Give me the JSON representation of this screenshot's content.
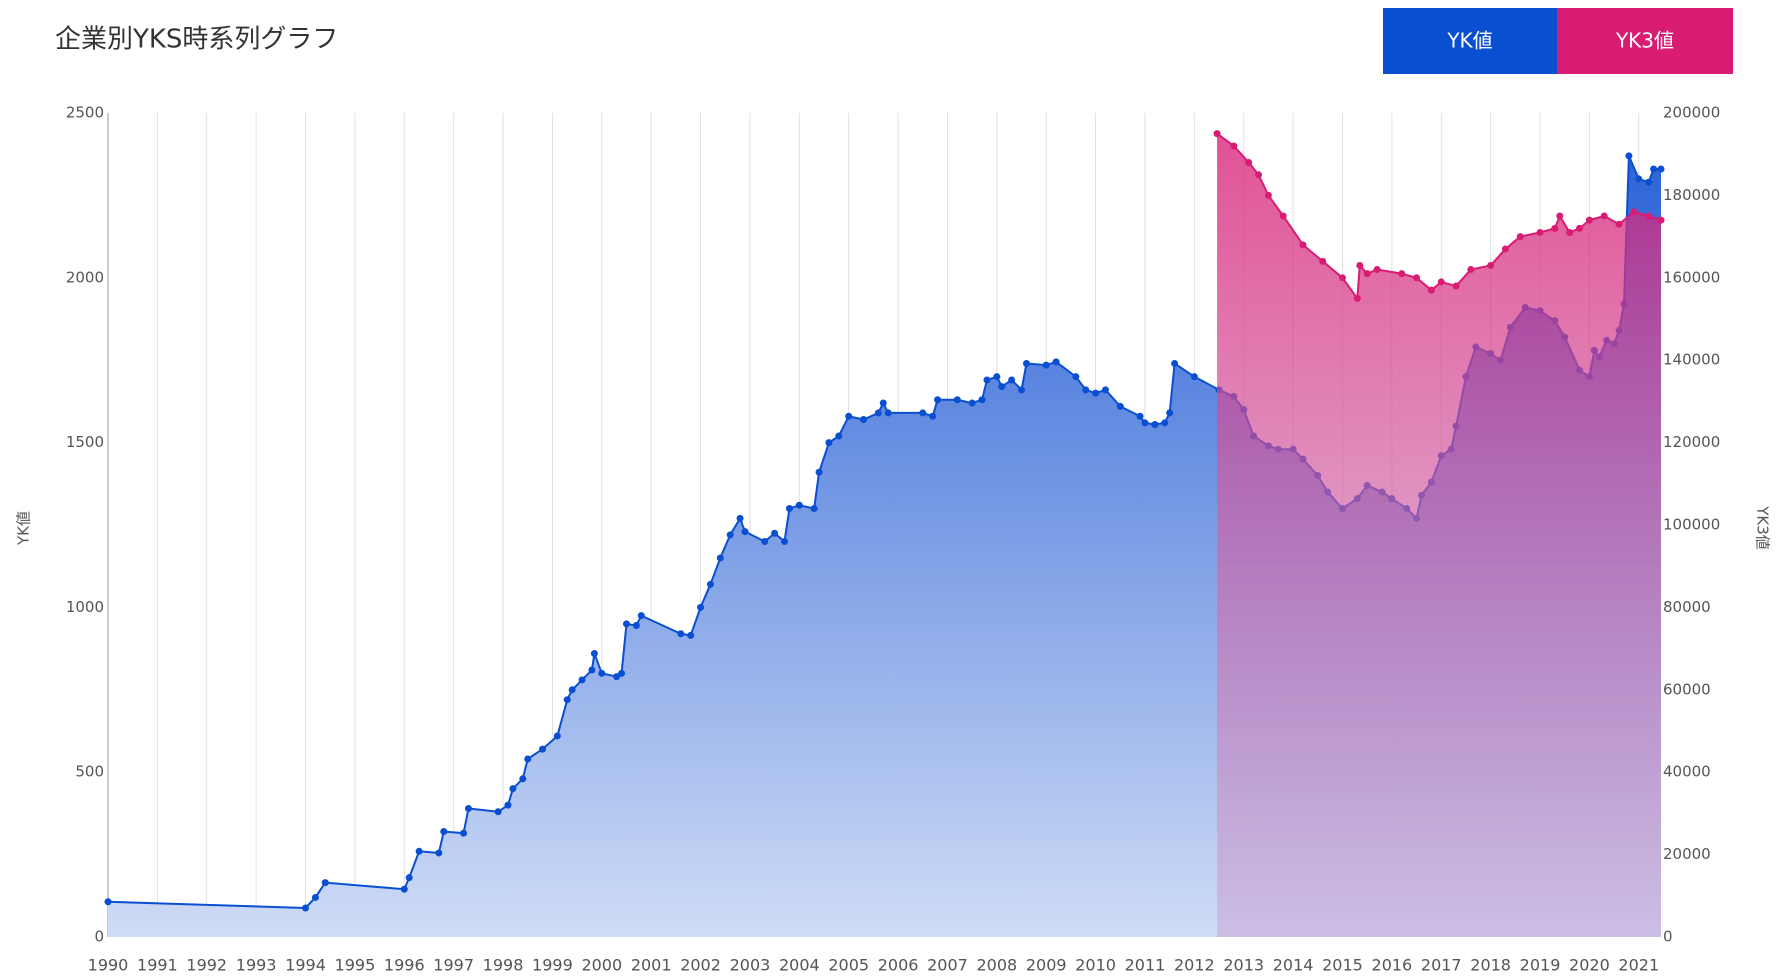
{
  "chart_data": {
    "type": "area",
    "title": "企業別YKS時系列グラフ",
    "y_label": "YK値",
    "y2_label": "YK3値",
    "xlim": [
      1990,
      2021.45
    ],
    "xticks": [
      1990,
      1991,
      1992,
      1993,
      1994,
      1995,
      1996,
      1997,
      1998,
      1999,
      2000,
      2001,
      2002,
      2003,
      2004,
      2005,
      2006,
      2007,
      2008,
      2009,
      2010,
      2011,
      2012,
      2013,
      2014,
      2015,
      2016,
      2017,
      2018,
      2019,
      2020,
      2021
    ],
    "ylim": [
      0,
      2500
    ],
    "yticks": [
      0,
      500,
      1000,
      1500,
      2000,
      2500
    ],
    "y2lim": [
      0,
      200000
    ],
    "y2ticks": [
      0,
      20000,
      40000,
      60000,
      80000,
      100000,
      120000,
      140000,
      160000,
      180000,
      200000
    ],
    "grid": true,
    "legend": "top-right",
    "series": [
      {
        "name": "YK値",
        "color": "#0a4fd1",
        "x": [
          1990,
          1994.0,
          1994.2,
          1994.4,
          1996.0,
          1996.1,
          1996.3,
          1996.7,
          1996.8,
          1997.2,
          1997.3,
          1997.9,
          1998.1,
          1998.2,
          1998.4,
          1998.5,
          1998.8,
          1999.1,
          1999.3,
          1999.4,
          1999.6,
          1999.8,
          1999.85,
          2000.0,
          2000.3,
          2000.4,
          2000.5,
          2000.7,
          2000.8,
          2001.6,
          2001.8,
          2002.0,
          2002.2,
          2002.4,
          2002.6,
          2002.8,
          2002.9,
          2003.3,
          2003.5,
          2003.7,
          2003.8,
          2004.0,
          2004.3,
          2004.4,
          2004.6,
          2004.8,
          2005.0,
          2005.3,
          2005.6,
          2005.7,
          2005.8,
          2006.5,
          2006.7,
          2006.8,
          2007.2,
          2007.5,
          2007.7,
          2007.8,
          2008.0,
          2008.1,
          2008.3,
          2008.5,
          2008.6,
          2009.0,
          2009.2,
          2009.6,
          2009.8,
          2010.0,
          2010.2,
          2010.5,
          2010.9,
          2011.0,
          2011.2,
          2011.4,
          2011.5,
          2011.6,
          2012.0,
          2012.5,
          2012.8,
          2013.0,
          2013.2,
          2013.5,
          2013.7,
          2014.0,
          2014.2,
          2014.5,
          2014.7,
          2015.0,
          2015.3,
          2015.5,
          2015.8,
          2016.0,
          2016.3,
          2016.5,
          2016.6,
          2016.8,
          2017.0,
          2017.2,
          2017.3,
          2017.5,
          2017.7,
          2018.0,
          2018.2,
          2018.4,
          2018.7,
          2019.0,
          2019.3,
          2019.5,
          2019.8,
          2020.0,
          2020.1,
          2020.2,
          2020.35,
          2020.5,
          2020.6,
          2020.7,
          2020.8,
          2021.0,
          2021.2,
          2021.3,
          2021.45
        ],
        "values": [
          107,
          88,
          120,
          165,
          145,
          180,
          260,
          255,
          320,
          315,
          390,
          380,
          400,
          450,
          480,
          540,
          570,
          610,
          720,
          750,
          780,
          810,
          860,
          800,
          790,
          800,
          950,
          945,
          975,
          920,
          915,
          1000,
          1070,
          1150,
          1220,
          1270,
          1230,
          1200,
          1225,
          1200,
          1300,
          1310,
          1300,
          1410,
          1500,
          1520,
          1580,
          1570,
          1590,
          1620,
          1590,
          1590,
          1580,
          1630,
          1630,
          1620,
          1630,
          1690,
          1700,
          1670,
          1690,
          1660,
          1740,
          1735,
          1745,
          1700,
          1660,
          1650,
          1660,
          1610,
          1580,
          1560,
          1555,
          1560,
          1590,
          1740,
          1700,
          1660,
          1640,
          1600,
          1520,
          1490,
          1480,
          1480,
          1450,
          1400,
          1350,
          1300,
          1330,
          1370,
          1350,
          1330,
          1300,
          1270,
          1340,
          1380,
          1460,
          1480,
          1550,
          1700,
          1790,
          1770,
          1750,
          1850,
          1910,
          1900,
          1870,
          1820,
          1720,
          1700,
          1780,
          1760,
          1810,
          1800,
          1840,
          1920,
          2370,
          2300,
          2290,
          2330,
          2330
        ]
      },
      {
        "name": "YK3値",
        "color": "#d81b73",
        "axis": "y2",
        "x": [
          2012.46,
          2012.8,
          2013.1,
          2013.3,
          2013.5,
          2013.8,
          2014.2,
          2014.6,
          2015.0,
          2015.3,
          2015.35,
          2015.5,
          2015.7,
          2016.2,
          2016.5,
          2016.8,
          2017.0,
          2017.3,
          2017.6,
          2018.0,
          2018.3,
          2018.6,
          2019.0,
          2019.3,
          2019.4,
          2019.6,
          2019.8,
          2020.0,
          2020.3,
          2020.6,
          2020.9,
          2021.2,
          2021.45
        ],
        "values": [
          195000,
          192000,
          188000,
          185000,
          180000,
          175000,
          168000,
          164000,
          160000,
          155000,
          163000,
          161000,
          162000,
          161000,
          160000,
          157000,
          159000,
          158000,
          162000,
          163000,
          167000,
          170000,
          171000,
          172000,
          175000,
          171000,
          172000,
          174000,
          175000,
          173000,
          176000,
          175000,
          174000
        ]
      }
    ]
  }
}
